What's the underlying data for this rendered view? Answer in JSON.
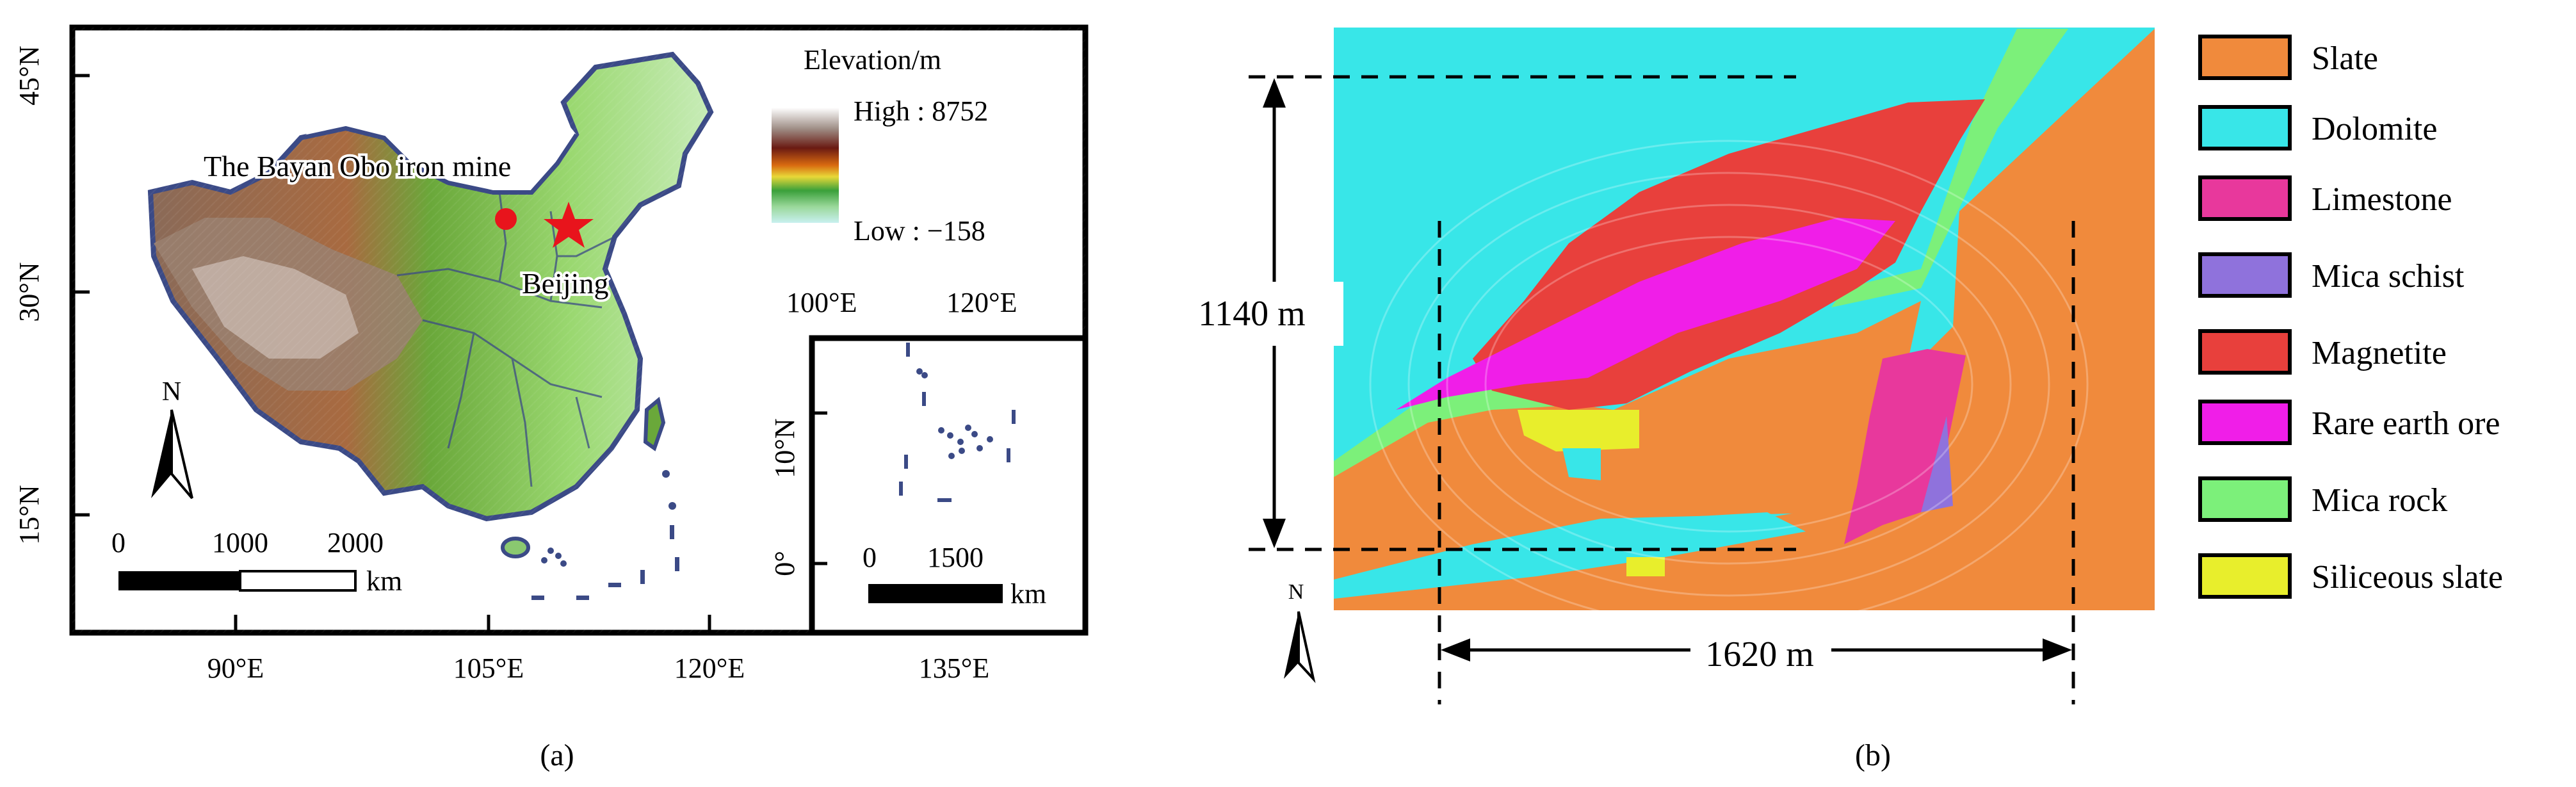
{
  "panel_a": {
    "caption": "(a)",
    "lat_labels": [
      "45°N",
      "30°N",
      "15°N"
    ],
    "lon_labels": [
      "90°E",
      "105°E",
      "120°E",
      "135°E"
    ],
    "north_label": "N",
    "scale_ticks": [
      "0",
      "1000",
      "2000"
    ],
    "scale_unit": "km",
    "legend": {
      "title": "Elevation/m",
      "high": "High : 8752",
      "low": "Low : −158"
    },
    "mine_label": "The Bayan Obo iron mine",
    "city_label": "Beijing",
    "inset": {
      "top_labels": [
        "100°E",
        "120°E"
      ],
      "lat_labels": [
        "10°N",
        "0°"
      ],
      "scale_ticks": [
        "0",
        "1500"
      ],
      "scale_unit": "km"
    },
    "colors": {
      "mine_marker": "#e8141c",
      "city_marker": "#e8141c",
      "border": "#3b4a86"
    }
  },
  "panel_b": {
    "caption": "(b)",
    "north_label": "N",
    "height_label": "1140 m",
    "width_label": "1620 m",
    "legend": [
      {
        "label": "Slate",
        "color": "#f08a3c"
      },
      {
        "label": "Dolomite",
        "color": "#38e6e8"
      },
      {
        "label": "Limestone",
        "color": "#e8389c"
      },
      {
        "label": "Mica schist",
        "color": "#8f72dc"
      },
      {
        "label": "Magnetite",
        "color": "#e8403c"
      },
      {
        "label": "Rare earth ore",
        "color": "#f01ee8"
      },
      {
        "label": "Mica rock",
        "color": "#7cf07a"
      },
      {
        "label": "Siliceous slate",
        "color": "#e8ee2c"
      }
    ]
  }
}
